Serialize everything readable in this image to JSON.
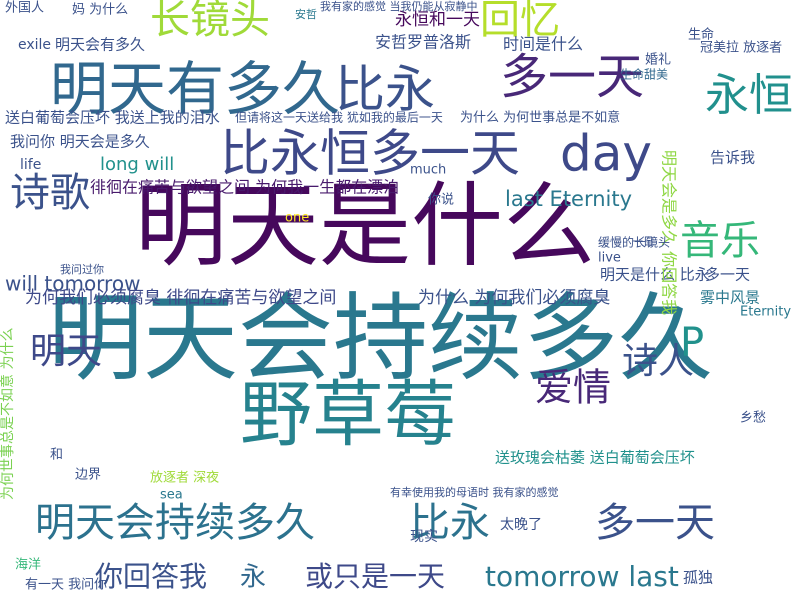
{
  "words": [
    "明天会持续多久",
    "明天是什么",
    "野草莓",
    "明天有多久",
    "比永",
    "多一天",
    "比永恒多一天",
    "day",
    "长镜头",
    "回忆",
    "永恒",
    "诗歌",
    "音乐",
    "明天",
    "爱情",
    "诗人",
    "P",
    "明天会持续多久",
    "比永",
    "多一天",
    "你回答我",
    "永",
    "或只是一天",
    "tomorrow last",
    "last Eternity",
    "will tomorrow",
    "为何我们必须腐臭 徘徊在痛苦与欲望之间",
    "为什么 为何我们必须腐臭",
    "徘徊在痛苦与欲望之间 为何我一生都在漂泊",
    "long will",
    "送白葡萄会压坏 我送上我的泪水",
    "我问你 明天会是多久",
    "明天会有多久",
    "永恒和一天",
    "时间是什么",
    "安哲罗普洛斯",
    "明天是什么 比永",
    "多一天",
    "雾中风景",
    "告诉我",
    "生命甜美",
    "冠美拉 放逐者",
    "生命",
    "婚礼",
    "送玫瑰会枯萎 送白葡萄会压坏",
    "太晚了",
    "现实",
    "孤独",
    "乡愁",
    "外国人",
    "妈 为什么",
    "我问过你",
    "海洋",
    "有一天 我问你",
    "边界",
    "和",
    "放逐者 深夜",
    "sea",
    "exile",
    "life",
    "much",
    "你说",
    "live",
    "one",
    "但请将这一天送给我 犹如我的最后一天",
    "为什么 为何世事总是不如意",
    "我有家的感觉 当我仍能从寂静中",
    "有幸使用我的母语时 我有家的感觉",
    "明天会是多久 你回答我",
    "为何世事总是不如意 为什么",
    "缓慢的长镜头",
    "Eternity",
    "一日",
    "安哲"
  ]
}
